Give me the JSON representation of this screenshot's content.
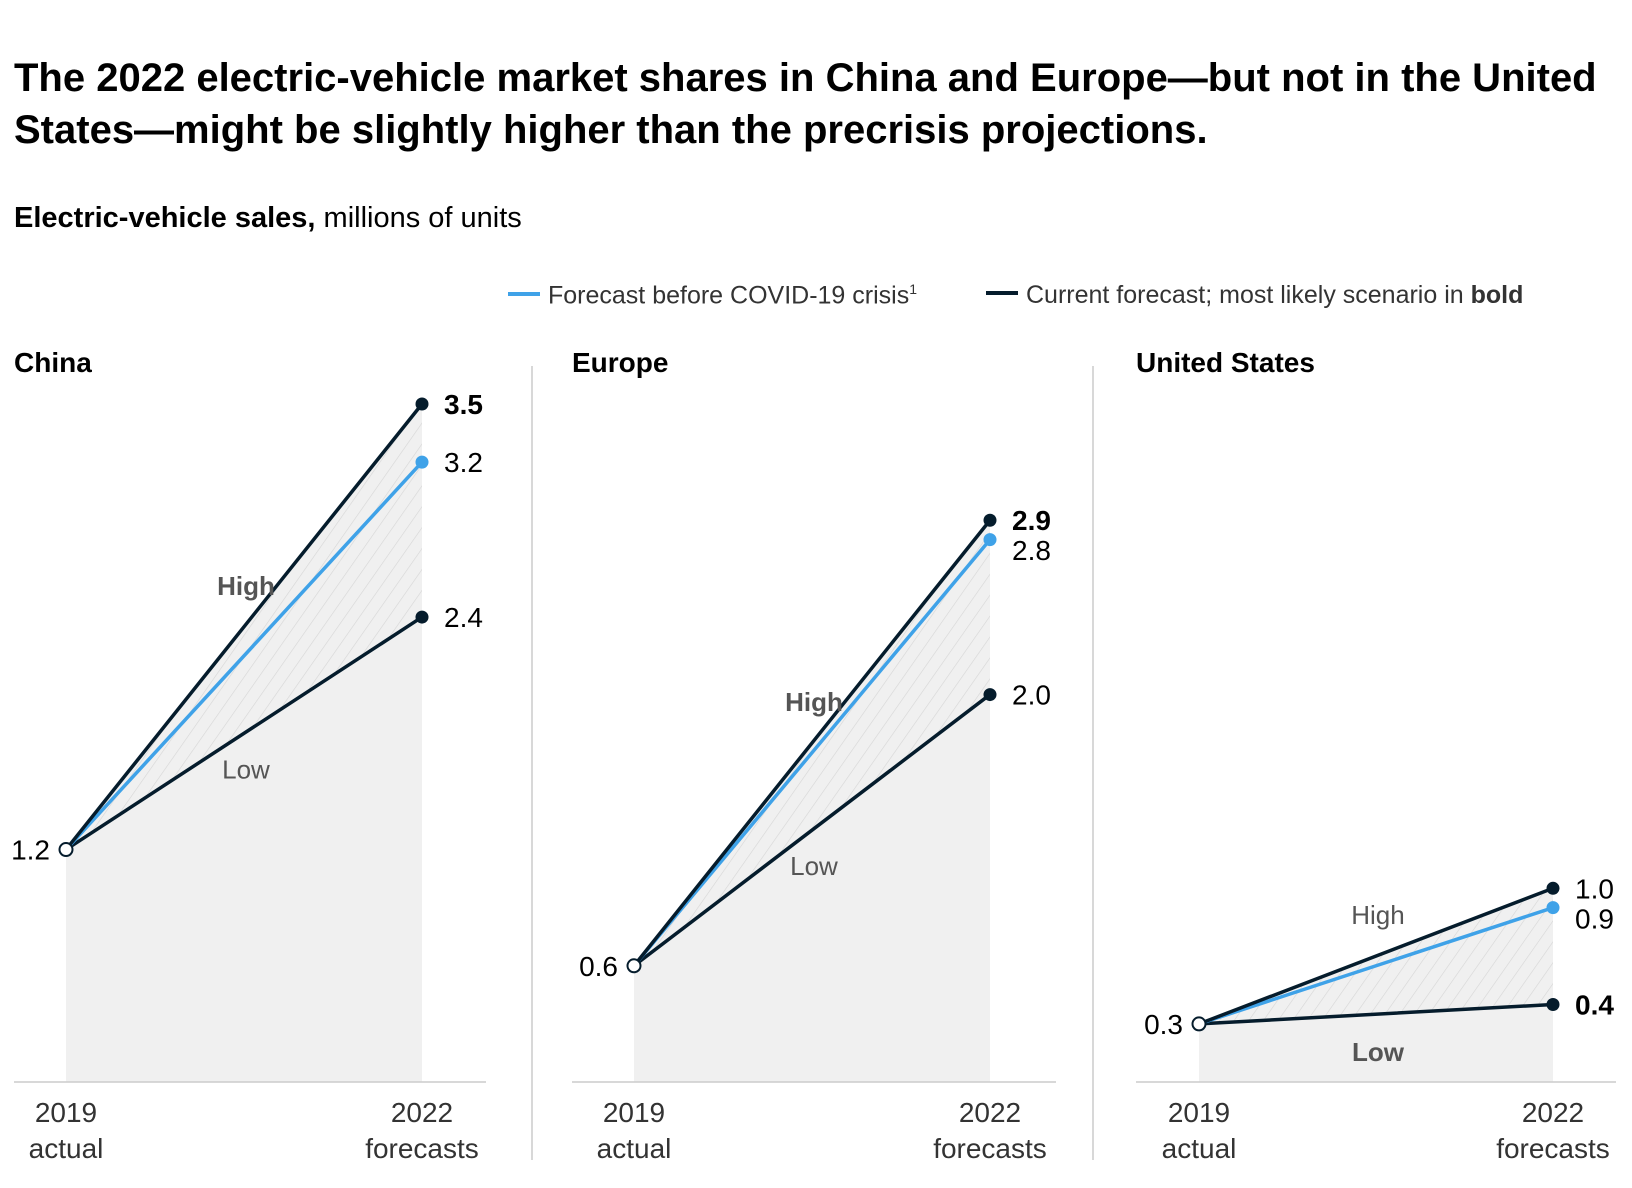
{
  "title": "The 2022 electric-vehicle market shares in China and Europe—but not in the United States—might be slightly higher than the precrisis projections.",
  "subtitle": {
    "bold": "Electric-vehicle sales,",
    "rest": " millions of units"
  },
  "legend": {
    "precrisis_label": "Forecast before COVID-19 crisis",
    "precrisis_footnote": "1",
    "current_label": "Current forecast; most likely scenario in ",
    "current_bold": "bold"
  },
  "colors": {
    "precrisis": "#3fa2e8",
    "current": "#051c2c",
    "fill": "#f0f0f0",
    "axis": "#cccccc",
    "label": "#555555"
  },
  "chart_data": [
    {
      "type": "line",
      "title": "China",
      "x": [
        "2019",
        "2022"
      ],
      "x_tick_labels": [
        [
          "2019",
          "actual"
        ],
        [
          "2022",
          "forecasts"
        ]
      ],
      "ylim": [
        0,
        3.5
      ],
      "start": {
        "value": 1.2,
        "label": "1.2"
      },
      "series": [
        {
          "name": "High",
          "role": "current-high",
          "values": [
            1.2,
            3.5
          ],
          "end_label": "3.5",
          "bold": true
        },
        {
          "role": "precrisis",
          "values": [
            1.2,
            3.2
          ],
          "end_label": "3.2",
          "bold": false
        },
        {
          "name": "Low",
          "role": "current-low",
          "values": [
            1.2,
            2.4
          ],
          "end_label": "2.4",
          "bold": false
        }
      ],
      "annotations": {
        "high": "High",
        "low": "Low",
        "high_bold": true,
        "low_bold": false
      }
    },
    {
      "type": "line",
      "title": "Europe",
      "x": [
        "2019",
        "2022"
      ],
      "x_tick_labels": [
        [
          "2019",
          "actual"
        ],
        [
          "2022",
          "forecasts"
        ]
      ],
      "ylim": [
        0,
        3.5
      ],
      "start": {
        "value": 0.6,
        "label": "0.6"
      },
      "series": [
        {
          "name": "High",
          "role": "current-high",
          "values": [
            0.6,
            2.9
          ],
          "end_label": "2.9",
          "bold": true
        },
        {
          "role": "precrisis",
          "values": [
            0.6,
            2.8
          ],
          "end_label": "2.8",
          "bold": false
        },
        {
          "name": "Low",
          "role": "current-low",
          "values": [
            0.6,
            2.0
          ],
          "end_label": "2.0",
          "bold": false
        }
      ],
      "annotations": {
        "high": "High",
        "low": "Low",
        "high_bold": true,
        "low_bold": false
      }
    },
    {
      "type": "line",
      "title": "United States",
      "x": [
        "2019",
        "2022"
      ],
      "x_tick_labels": [
        [
          "2019",
          "actual"
        ],
        [
          "2022",
          "forecasts"
        ]
      ],
      "ylim": [
        0,
        3.5
      ],
      "start": {
        "value": 0.3,
        "label": "0.3"
      },
      "series": [
        {
          "name": "High",
          "role": "current-high",
          "values": [
            0.3,
            1.0
          ],
          "end_label": "1.0",
          "bold": false
        },
        {
          "role": "precrisis",
          "values": [
            0.3,
            0.9
          ],
          "end_label": "0.9",
          "bold": false
        },
        {
          "name": "Low",
          "role": "current-low",
          "values": [
            0.3,
            0.4
          ],
          "end_label": "0.4",
          "bold": true
        }
      ],
      "annotations": {
        "high": "High",
        "low": "Low",
        "high_bold": false,
        "low_bold": true
      }
    }
  ]
}
